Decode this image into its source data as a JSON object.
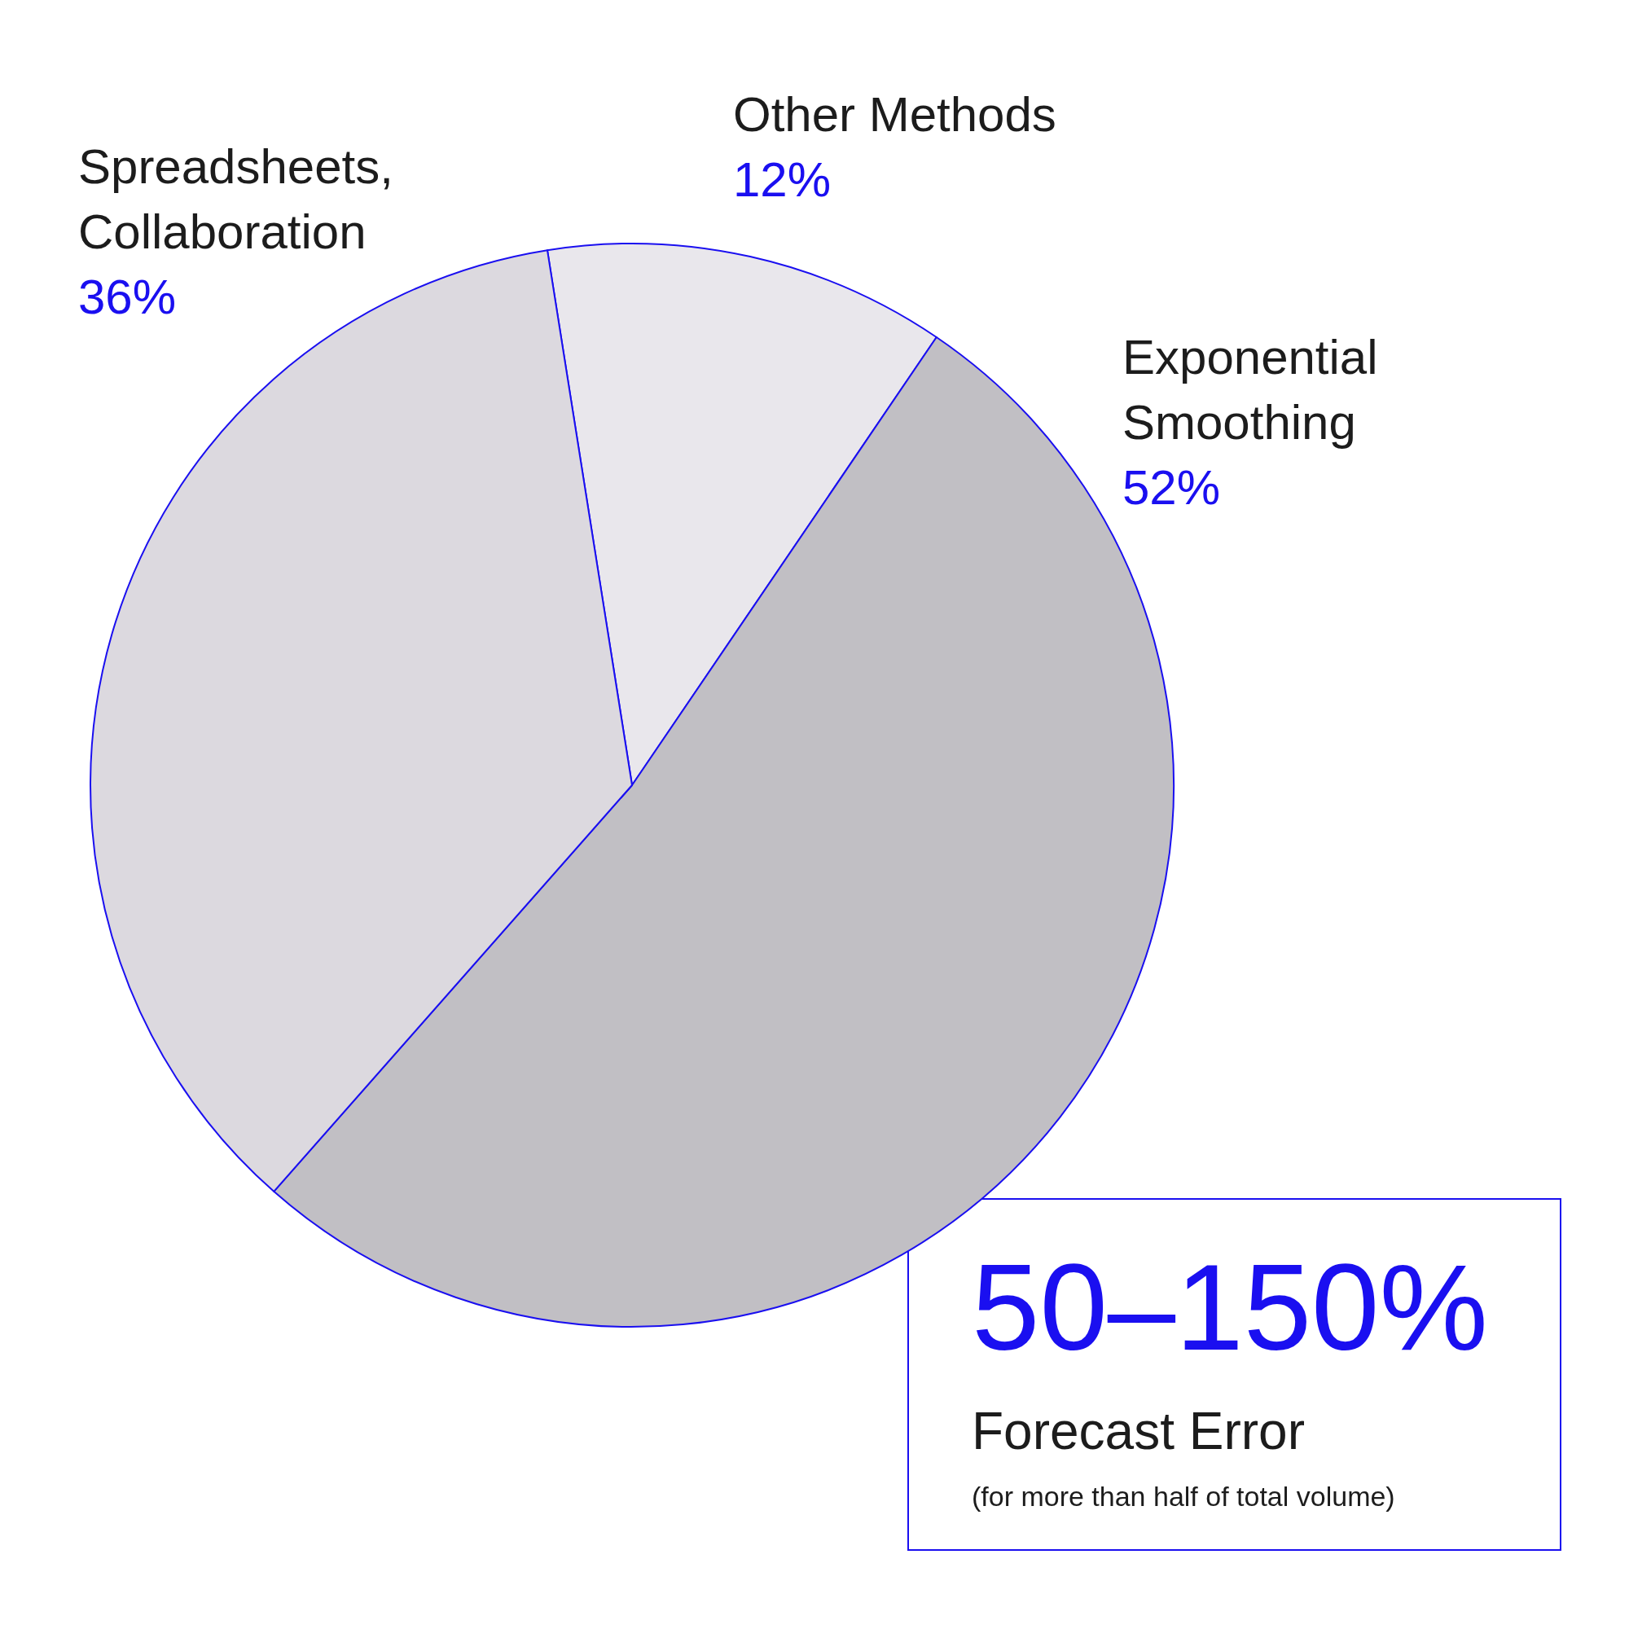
{
  "chart_data": {
    "type": "pie",
    "categories": [
      "Other Methods",
      "Exponential Smoothing",
      "Spreadsheets, Collaboration"
    ],
    "values": [
      12,
      52,
      36
    ],
    "value_labels": [
      "12%",
      "52%",
      "36%"
    ],
    "colors": [
      "#e9e7ec",
      "#c1bfc4",
      "#dcd9df"
    ],
    "legend": false,
    "annotations": [
      "50–150%",
      "Forecast Error",
      "(for more than half of total volume)"
    ]
  }
}
